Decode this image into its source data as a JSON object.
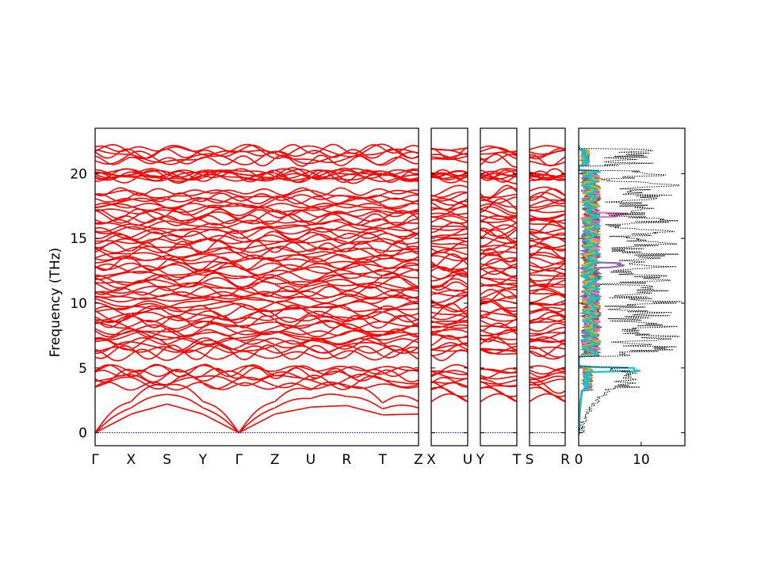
{
  "chart_data": {
    "type": "line",
    "ylabel": "Frequency (THz)",
    "ylim": [
      -1,
      23.5
    ],
    "yticks": [
      0,
      5,
      10,
      15,
      20
    ],
    "band_color": "#ff0000",
    "zero_line_color": "#0000cc",
    "segments": [
      {
        "labels": [
          "Γ",
          "X",
          "S",
          "Y",
          "Γ",
          "Z",
          "U",
          "R",
          "T",
          "Z"
        ]
      },
      {
        "labels": [
          "X",
          "U"
        ]
      },
      {
        "labels": [
          "Y",
          "T"
        ]
      },
      {
        "labels": [
          "S",
          "R"
        ]
      }
    ],
    "acoustic_top_at_zone_points": [
      0,
      2.4,
      3.7,
      2.4,
      0,
      2.4,
      3.3,
      3.5,
      2.3,
      2.4
    ],
    "dos": {
      "xlim": [
        0,
        17
      ],
      "xticks": [
        0,
        10
      ],
      "total_color": "#000000",
      "projection_colors": [
        "#1f77b4",
        "#ff7f0e",
        "#2ca02c",
        "#d62728",
        "#9467bd",
        "#8c564b",
        "#e377c2",
        "#7f7f7f",
        "#bcbd22",
        "#17becf"
      ]
    }
  }
}
